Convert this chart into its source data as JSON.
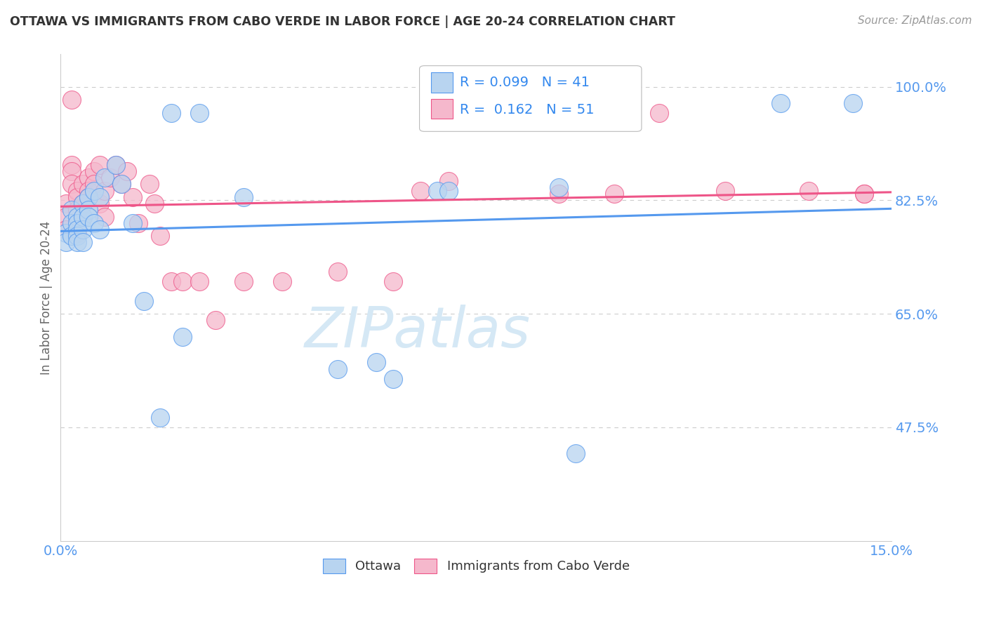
{
  "title": "OTTAWA VS IMMIGRANTS FROM CABO VERDE IN LABOR FORCE | AGE 20-24 CORRELATION CHART",
  "source_text": "Source: ZipAtlas.com",
  "ylabel": "In Labor Force | Age 20-24",
  "xlim": [
    0.0,
    0.15
  ],
  "ylim": [
    0.3,
    1.05
  ],
  "ytick_vals": [
    0.475,
    0.65,
    0.825,
    1.0
  ],
  "ytick_labels": [
    "47.5%",
    "65.0%",
    "82.5%",
    "100.0%"
  ],
  "ottawa_color": "#b8d4f0",
  "cabo_verde_color": "#f5b8cc",
  "trend_blue": "#5599ee",
  "trend_pink": "#ee5588",
  "background": "#ffffff",
  "ottawa_x": [
    0.001,
    0.001,
    0.002,
    0.002,
    0.002,
    0.003,
    0.003,
    0.003,
    0.003,
    0.003,
    0.004,
    0.004,
    0.004,
    0.004,
    0.005,
    0.005,
    0.005,
    0.006,
    0.006,
    0.007,
    0.007,
    0.008,
    0.01,
    0.011,
    0.013,
    0.015,
    0.018,
    0.02,
    0.022,
    0.025,
    0.033,
    0.05,
    0.057,
    0.06,
    0.068,
    0.07,
    0.071,
    0.09,
    0.093,
    0.13,
    0.143
  ],
  "ottawa_y": [
    0.775,
    0.76,
    0.81,
    0.79,
    0.77,
    0.8,
    0.79,
    0.78,
    0.77,
    0.76,
    0.82,
    0.8,
    0.78,
    0.76,
    0.83,
    0.81,
    0.8,
    0.84,
    0.79,
    0.83,
    0.78,
    0.86,
    0.88,
    0.85,
    0.79,
    0.67,
    0.49,
    0.96,
    0.615,
    0.96,
    0.83,
    0.565,
    0.575,
    0.55,
    0.84,
    0.84,
    0.975,
    0.845,
    0.435,
    0.975,
    0.975
  ],
  "cabo_x": [
    0.001,
    0.001,
    0.001,
    0.002,
    0.002,
    0.002,
    0.002,
    0.003,
    0.003,
    0.003,
    0.003,
    0.003,
    0.004,
    0.004,
    0.004,
    0.005,
    0.005,
    0.005,
    0.006,
    0.006,
    0.007,
    0.007,
    0.008,
    0.008,
    0.009,
    0.01,
    0.011,
    0.012,
    0.013,
    0.014,
    0.016,
    0.017,
    0.018,
    0.02,
    0.022,
    0.025,
    0.028,
    0.033,
    0.04,
    0.05,
    0.06,
    0.065,
    0.07,
    0.08,
    0.09,
    0.1,
    0.108,
    0.12,
    0.135,
    0.145,
    0.145
  ],
  "cabo_y": [
    0.82,
    0.8,
    0.78,
    0.98,
    0.88,
    0.87,
    0.85,
    0.84,
    0.83,
    0.81,
    0.79,
    0.775,
    0.85,
    0.82,
    0.8,
    0.86,
    0.84,
    0.83,
    0.87,
    0.85,
    0.88,
    0.82,
    0.84,
    0.8,
    0.86,
    0.88,
    0.85,
    0.87,
    0.83,
    0.79,
    0.85,
    0.82,
    0.77,
    0.7,
    0.7,
    0.7,
    0.64,
    0.7,
    0.7,
    0.715,
    0.7,
    0.84,
    0.855,
    0.98,
    0.835,
    0.835,
    0.96,
    0.84,
    0.84,
    0.835,
    0.835
  ],
  "wm_text": "ZIPatlas",
  "wm_color": "#d5e8f5",
  "wm_alpha": 0.9
}
